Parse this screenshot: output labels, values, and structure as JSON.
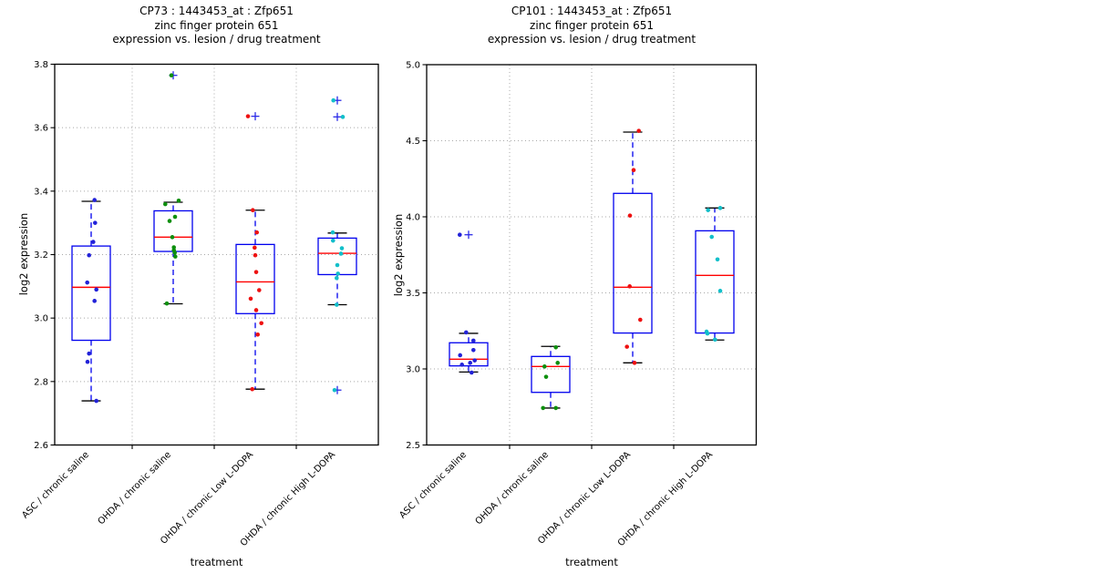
{
  "figure": {
    "background": "#ffffff"
  },
  "colors": {
    "axis": "#000000",
    "grid": "#a8a8a8",
    "box": "#0000ee",
    "whisker": "#0000ee",
    "cap": "#000000",
    "median": "#ff0000",
    "flier": "#2a2ae8",
    "text": "#000000",
    "groups": {
      "blue": "#2222d8",
      "green": "#0d8f0d",
      "red": "#ee1111",
      "cyan": "#12bfca"
    }
  },
  "chart_data": [
    {
      "id": "CP73",
      "type": "box",
      "title_lines": [
        "CP73 : 1443453_at : Zfp651",
        "zinc finger protein 651",
        "expression vs. lesion / drug treatment"
      ],
      "ylabel": "log2 expression",
      "xlabel": "treatment",
      "ylim": [
        2.6,
        3.8
      ],
      "yticks": [
        2.6,
        2.8,
        3.0,
        3.2,
        3.4,
        3.6,
        3.8
      ],
      "grid": true,
      "categories": [
        "ASC / chronic saline",
        "OHDA / chronic saline",
        "OHDA / chronic Low L-DOPA",
        "OHDA / chronic High L-DOPA"
      ],
      "groups": [
        {
          "category": "ASC / chronic saline",
          "color": "blue",
          "box": {
            "whisker_low": 2.739,
            "q1": 2.93,
            "median": 3.097,
            "q3": 3.227,
            "whisker_high": 3.368
          },
          "fliers": [],
          "points": [
            [
              3.372,
              3.7
            ],
            [
              3.3,
              4.3
            ],
            [
              3.24,
              2.3
            ],
            [
              3.198,
              -2.3
            ],
            [
              3.112,
              -4.3
            ],
            [
              3.09,
              5.7
            ],
            [
              3.054,
              3.7
            ],
            [
              2.888,
              -2.3
            ],
            [
              2.862,
              -4.0
            ],
            [
              2.739,
              5.7
            ]
          ]
        },
        {
          "category": "OHDA / chronic saline",
          "color": "green",
          "box": {
            "whisker_low": 3.045,
            "q1": 3.21,
            "median": 3.255,
            "q3": 3.338,
            "whisker_high": 3.365
          },
          "fliers": [
            3.765
          ],
          "points": [
            [
              3.765,
              -2.0
            ],
            [
              3.37,
              6.0
            ],
            [
              3.359,
              -8.7
            ],
            [
              3.319,
              2.0
            ],
            [
              3.306,
              -4.0
            ],
            [
              3.255,
              -1.0
            ],
            [
              3.223,
              0.7
            ],
            [
              3.214,
              0.7
            ],
            [
              3.206,
              1.7
            ],
            [
              3.194,
              2.3
            ],
            [
              3.046,
              -7.0
            ]
          ]
        },
        {
          "category": "OHDA / chronic Low L-DOPA",
          "color": "red",
          "box": {
            "whisker_low": 2.776,
            "q1": 3.014,
            "median": 3.114,
            "q3": 3.232,
            "whisker_high": 3.34
          },
          "fliers": [
            3.636
          ],
          "points": [
            [
              3.636,
              -8.0
            ],
            [
              3.34,
              -2.7
            ],
            [
              3.27,
              1.7
            ],
            [
              3.222,
              -0.7
            ],
            [
              3.198,
              0.0
            ],
            [
              3.145,
              1.0
            ],
            [
              3.088,
              4.3
            ],
            [
              3.061,
              -5.0
            ],
            [
              3.025,
              1.0
            ],
            [
              2.984,
              6.7
            ],
            [
              2.948,
              2.7
            ],
            [
              2.776,
              -3.3
            ]
          ]
        },
        {
          "category": "OHDA / chronic High L-DOPA",
          "color": "cyan",
          "box": {
            "whisker_low": 3.042,
            "q1": 3.137,
            "median": 3.204,
            "q3": 3.252,
            "whisker_high": 3.268
          },
          "fliers": [
            3.686,
            3.634,
            2.773
          ],
          "points": [
            [
              3.686,
              -4.3
            ],
            [
              3.634,
              6.0
            ],
            [
              3.27,
              -5.0
            ],
            [
              3.244,
              -4.7
            ],
            [
              3.22,
              5.0
            ],
            [
              3.203,
              4.0
            ],
            [
              3.167,
              0.0
            ],
            [
              3.14,
              0.7
            ],
            [
              3.126,
              -0.7
            ],
            [
              3.042,
              -0.7
            ],
            [
              2.773,
              -3.0
            ]
          ]
        }
      ]
    },
    {
      "id": "CP101",
      "type": "box",
      "title_lines": [
        "CP101 : 1443453_at : Zfp651",
        "zinc finger protein 651",
        "expression vs. lesion / drug treatment"
      ],
      "ylabel": "log2 expression",
      "xlabel": "treatment",
      "ylim": [
        2.5,
        5.0
      ],
      "yticks": [
        2.5,
        3.0,
        3.5,
        4.0,
        4.5,
        5.0
      ],
      "grid": true,
      "categories": [
        "ASC / chronic saline",
        "OHDA / chronic saline",
        "OHDA / chronic Low L-DOPA",
        "OHDA / chronic High L-DOPA"
      ],
      "groups": [
        {
          "category": "ASC / chronic saline",
          "color": "blue",
          "box": {
            "whisker_low": 2.98,
            "q1": 3.02,
            "median": 3.064,
            "q3": 3.172,
            "whisker_high": 3.234
          },
          "fliers": [
            3.882
          ],
          "points": [
            [
              3.882,
              -9.7
            ],
            [
              3.24,
              -2.7
            ],
            [
              3.186,
              5.3
            ],
            [
              3.124,
              5.3
            ],
            [
              3.09,
              -9.3
            ],
            [
              3.056,
              6.7
            ],
            [
              3.04,
              1.7
            ],
            [
              3.028,
              -7.3
            ],
            [
              2.976,
              3.3
            ]
          ]
        },
        {
          "category": "OHDA / chronic saline",
          "color": "green",
          "box": {
            "whisker_low": 2.743,
            "q1": 2.846,
            "median": 3.016,
            "q3": 3.082,
            "whisker_high": 3.148
          },
          "fliers": [],
          "points": [
            [
              3.142,
              5.7
            ],
            [
              3.04,
              7.7
            ],
            [
              3.016,
              -6.7
            ],
            [
              2.948,
              -5.0
            ],
            [
              2.743,
              -8.3
            ],
            [
              2.743,
              5.7
            ]
          ]
        },
        {
          "category": "OHDA / chronic Low L-DOPA",
          "color": "red",
          "box": {
            "whisker_low": 3.04,
            "q1": 3.236,
            "median": 3.537,
            "q3": 4.154,
            "whisker_high": 4.557
          },
          "fliers": [],
          "points": [
            [
              4.565,
              6.7
            ],
            [
              4.307,
              1.0
            ],
            [
              4.008,
              -3.0
            ],
            [
              3.543,
              -3.3
            ],
            [
              3.323,
              8.3
            ],
            [
              3.146,
              -6.3
            ],
            [
              3.04,
              2.0
            ]
          ]
        },
        {
          "category": "OHDA / chronic High L-DOPA",
          "color": "cyan",
          "box": {
            "whisker_low": 3.19,
            "q1": 3.236,
            "median": 3.615,
            "q3": 3.908,
            "whisker_high": 4.058
          },
          "fliers": [],
          "points": [
            [
              4.058,
              6.0
            ],
            [
              4.044,
              -7.3
            ],
            [
              3.868,
              -3.3
            ],
            [
              3.72,
              3.0
            ],
            [
              3.513,
              6.0
            ],
            [
              3.245,
              -9.0
            ],
            [
              3.233,
              -8.0
            ],
            [
              3.193,
              0.3
            ]
          ]
        }
      ]
    }
  ]
}
